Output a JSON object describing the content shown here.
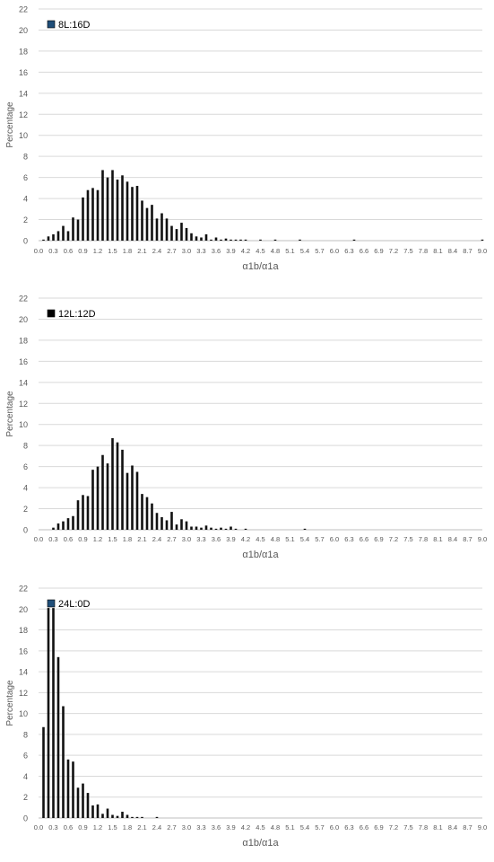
{
  "colors": {
    "series_8L": "#1F4E79",
    "series_12L": "#000000",
    "series_24L": "#1F4E79",
    "bars": "#111111",
    "grid": "#d9d9d9",
    "text": "#595959"
  },
  "chart_data": [
    {
      "type": "bar",
      "title": "",
      "xlabel": "α1b/α1a",
      "ylabel": "Percentage",
      "ylim": [
        0,
        22
      ],
      "yticks": [
        "0",
        "2",
        "4",
        "6",
        "8",
        "10",
        "12",
        "14",
        "16",
        "18",
        "20",
        "22"
      ],
      "xlim": [
        0.0,
        9.0
      ],
      "xticks": [
        "0.0",
        "0.3",
        "0.6",
        "0.9",
        "1.2",
        "1.5",
        "1.8",
        "2.1",
        "2.4",
        "2.7",
        "3.0",
        "3.3",
        "3.6",
        "3.9",
        "4.2",
        "4.5",
        "4.8",
        "5.1",
        "5.4",
        "5.7",
        "6.0",
        "6.3",
        "6.6",
        "6.9",
        "7.2",
        "7.5",
        "7.8",
        "8.1",
        "8.4",
        "8.7",
        "9.0"
      ],
      "grid": true,
      "legend_position": "top-left",
      "series": [
        {
          "name": "8L:16D",
          "x": [
            0.1,
            0.2,
            0.3,
            0.4,
            0.5,
            0.6,
            0.7,
            0.8,
            0.9,
            1.0,
            1.1,
            1.2,
            1.3,
            1.4,
            1.5,
            1.6,
            1.7,
            1.8,
            1.9,
            2.0,
            2.1,
            2.2,
            2.3,
            2.4,
            2.5,
            2.6,
            2.7,
            2.8,
            2.9,
            3.0,
            3.1,
            3.2,
            3.3,
            3.4,
            3.5,
            3.6,
            3.7,
            3.8,
            3.9,
            4.0,
            4.1,
            4.2,
            4.5,
            4.8,
            5.3,
            6.4,
            9.0
          ],
          "values": [
            0.1,
            0.4,
            0.6,
            0.9,
            1.4,
            0.9,
            2.2,
            2.0,
            4.1,
            4.8,
            5.0,
            4.8,
            6.7,
            6.0,
            6.7,
            5.8,
            6.2,
            5.6,
            5.1,
            5.2,
            3.8,
            3.1,
            3.4,
            2.1,
            2.6,
            2.1,
            1.4,
            1.1,
            1.7,
            1.2,
            0.7,
            0.4,
            0.3,
            0.6,
            0.1,
            0.3,
            0.1,
            0.2,
            0.1,
            0.1,
            0.1,
            0.1,
            0.1,
            0.1,
            0.1,
            0.1,
            0.1
          ]
        }
      ]
    },
    {
      "type": "bar",
      "title": "",
      "xlabel": "α1b/α1a",
      "ylabel": "Percentage",
      "ylim": [
        0,
        22
      ],
      "yticks": [
        "0",
        "2",
        "4",
        "6",
        "8",
        "10",
        "12",
        "14",
        "16",
        "18",
        "20",
        "22"
      ],
      "xlim": [
        0.0,
        9.0
      ],
      "xticks": [
        "0.0",
        "0.3",
        "0.6",
        "0.9",
        "1.2",
        "1.5",
        "1.8",
        "2.1",
        "2.4",
        "2.7",
        "3.0",
        "3.3",
        "3.6",
        "3.9",
        "4.2",
        "4.5",
        "4.8",
        "5.1",
        "5.4",
        "5.7",
        "6.0",
        "6.3",
        "6.6",
        "6.9",
        "7.2",
        "7.5",
        "7.8",
        "8.1",
        "8.4",
        "8.7",
        "9.0"
      ],
      "grid": true,
      "legend_position": "top-left",
      "series": [
        {
          "name": "12L:12D",
          "x": [
            0.3,
            0.4,
            0.5,
            0.6,
            0.7,
            0.8,
            0.9,
            1.0,
            1.1,
            1.2,
            1.3,
            1.4,
            1.5,
            1.6,
            1.7,
            1.8,
            1.9,
            2.0,
            2.1,
            2.2,
            2.3,
            2.4,
            2.5,
            2.6,
            2.7,
            2.8,
            2.9,
            3.0,
            3.1,
            3.2,
            3.3,
            3.4,
            3.5,
            3.6,
            3.7,
            3.8,
            3.9,
            4.0,
            4.2,
            5.4
          ],
          "values": [
            0.2,
            0.6,
            0.8,
            1.1,
            1.3,
            2.8,
            3.3,
            3.2,
            5.7,
            6.0,
            7.1,
            6.3,
            8.7,
            8.3,
            7.6,
            5.4,
            6.1,
            5.5,
            3.4,
            3.1,
            2.5,
            1.6,
            1.2,
            0.9,
            1.7,
            0.5,
            1.0,
            0.8,
            0.3,
            0.3,
            0.2,
            0.4,
            0.2,
            0.1,
            0.2,
            0.1,
            0.3,
            0.1,
            0.1,
            0.1
          ]
        }
      ]
    },
    {
      "type": "bar",
      "title": "",
      "xlabel": "α1b/α1a",
      "ylabel": "Percentage",
      "ylim": [
        0,
        22
      ],
      "yticks": [
        "0",
        "2",
        "4",
        "6",
        "8",
        "10",
        "12",
        "14",
        "16",
        "18",
        "20",
        "22"
      ],
      "xlim": [
        0.0,
        9.0
      ],
      "xticks": [
        "0.0",
        "0.3",
        "0.6",
        "0.9",
        "1.2",
        "1.5",
        "1.8",
        "2.1",
        "2.4",
        "2.7",
        "3.0",
        "3.3",
        "3.6",
        "3.9",
        "4.2",
        "4.5",
        "4.8",
        "5.1",
        "5.4",
        "5.7",
        "6.0",
        "6.3",
        "6.6",
        "6.9",
        "7.2",
        "7.5",
        "7.8",
        "8.1",
        "8.4",
        "8.7",
        "9.0"
      ],
      "grid": true,
      "legend_position": "top-left",
      "series": [
        {
          "name": "24L:0D",
          "x": [
            0.1,
            0.2,
            0.3,
            0.4,
            0.5,
            0.6,
            0.7,
            0.8,
            0.9,
            1.0,
            1.1,
            1.2,
            1.3,
            1.4,
            1.5,
            1.6,
            1.7,
            1.8,
            1.9,
            2.0,
            2.1,
            2.4
          ],
          "values": [
            8.7,
            20.1,
            20.1,
            15.4,
            10.7,
            5.6,
            5.4,
            2.9,
            3.3,
            2.4,
            1.2,
            1.3,
            0.4,
            0.9,
            0.3,
            0.2,
            0.6,
            0.3,
            0.1,
            0.1,
            0.1,
            0.1
          ]
        }
      ]
    }
  ]
}
